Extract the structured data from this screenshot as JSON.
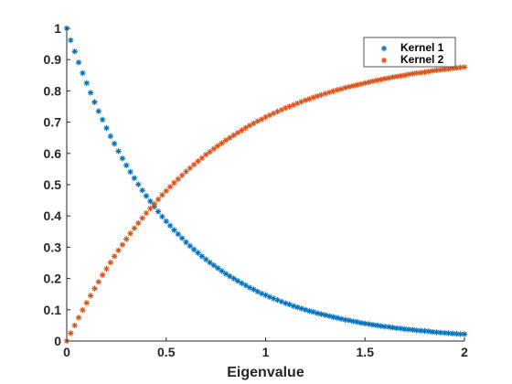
{
  "chart_data": {
    "type": "scatter",
    "xlabel": "Eigenvalue",
    "ylabel": "",
    "title": "",
    "xlim": [
      0,
      2
    ],
    "ylim": [
      0,
      1
    ],
    "x_ticks": [
      "0",
      "0.5",
      "1",
      "1.5",
      "2"
    ],
    "y_ticks": [
      "0",
      "0.1",
      "0.2",
      "0.3",
      "0.4",
      "0.5",
      "0.6",
      "0.7",
      "0.8",
      "0.9",
      "1"
    ],
    "grid": false,
    "legend_position": "top-right",
    "marker": "asterisk",
    "x": [
      0,
      0.02,
      0.04,
      0.06,
      0.08,
      0.1,
      0.12,
      0.14,
      0.16,
      0.18,
      0.2,
      0.22,
      0.24,
      0.26,
      0.28,
      0.3,
      0.32,
      0.34,
      0.36,
      0.38,
      0.4,
      0.42,
      0.44,
      0.46,
      0.48,
      0.5,
      0.52,
      0.54,
      0.56,
      0.58,
      0.6,
      0.62,
      0.64,
      0.66,
      0.68,
      0.7,
      0.72,
      0.74,
      0.76,
      0.78,
      0.8,
      0.82,
      0.84,
      0.86,
      0.88,
      0.9,
      0.92,
      0.94,
      0.96,
      0.98,
      1,
      1.02,
      1.04,
      1.06,
      1.08,
      1.1,
      1.12,
      1.14,
      1.16,
      1.18,
      1.2,
      1.22,
      1.24,
      1.26,
      1.28,
      1.3,
      1.32,
      1.34,
      1.36,
      1.38,
      1.4,
      1.42,
      1.44,
      1.46,
      1.48,
      1.5,
      1.52,
      1.54,
      1.56,
      1.58,
      1.6,
      1.62,
      1.64,
      1.66,
      1.68,
      1.7,
      1.72,
      1.74,
      1.76,
      1.78,
      1.8,
      1.82,
      1.84,
      1.86,
      1.88,
      1.9,
      1.92,
      1.94,
      1.96,
      1.98,
      2
    ],
    "series": [
      {
        "name": "Kernel 1",
        "color": "#0072bd",
        "values": [
          1,
          0.962,
          0.926,
          0.891,
          0.857,
          0.825,
          0.794,
          0.764,
          0.735,
          0.708,
          0.681,
          0.655,
          0.631,
          0.607,
          0.584,
          0.562,
          0.541,
          0.521,
          0.501,
          0.482,
          0.464,
          0.447,
          0.43,
          0.414,
          0.398,
          0.383,
          0.369,
          0.355,
          0.342,
          0.329,
          0.316,
          0.304,
          0.293,
          0.282,
          0.271,
          0.261,
          0.251,
          0.242,
          0.233,
          0.224,
          0.215,
          0.207,
          0.2,
          0.192,
          0.185,
          0.178,
          0.171,
          0.165,
          0.158,
          0.152,
          0.147,
          0.141,
          0.136,
          0.131,
          0.126,
          0.121,
          0.117,
          0.112,
          0.108,
          0.104,
          0.1,
          0.096,
          0.093,
          0.089,
          0.086,
          0.083,
          0.08,
          0.077,
          0.074,
          0.071,
          0.068,
          0.066,
          0.063,
          0.061,
          0.058,
          0.056,
          0.054,
          0.052,
          0.05,
          0.048,
          0.046,
          0.045,
          0.043,
          0.041,
          0.04,
          0.038,
          0.037,
          0.036,
          0.034,
          0.033,
          0.032,
          0.031,
          0.029,
          0.028,
          0.027,
          0.026,
          0.025,
          0.024,
          0.023,
          0.022,
          0.022
        ]
      },
      {
        "name": "Kernel 2",
        "color": "#d95319",
        "values": [
          0,
          0.025,
          0.05,
          0.075,
          0.099,
          0.122,
          0.145,
          0.168,
          0.189,
          0.211,
          0.231,
          0.251,
          0.271,
          0.29,
          0.308,
          0.326,
          0.344,
          0.361,
          0.377,
          0.393,
          0.409,
          0.424,
          0.438,
          0.453,
          0.467,
          0.48,
          0.493,
          0.506,
          0.518,
          0.53,
          0.542,
          0.553,
          0.564,
          0.575,
          0.585,
          0.596,
          0.605,
          0.615,
          0.624,
          0.633,
          0.642,
          0.65,
          0.658,
          0.666,
          0.674,
          0.682,
          0.689,
          0.696,
          0.703,
          0.709,
          0.716,
          0.722,
          0.728,
          0.734,
          0.739,
          0.745,
          0.75,
          0.755,
          0.76,
          0.765,
          0.77,
          0.774,
          0.779,
          0.783,
          0.787,
          0.791,
          0.795,
          0.799,
          0.803,
          0.806,
          0.81,
          0.813,
          0.816,
          0.819,
          0.822,
          0.825,
          0.828,
          0.831,
          0.834,
          0.836,
          0.839,
          0.841,
          0.844,
          0.846,
          0.848,
          0.85,
          0.853,
          0.855,
          0.857,
          0.858,
          0.86,
          0.862,
          0.864,
          0.866,
          0.867,
          0.869,
          0.87,
          0.872,
          0.873,
          0.875,
          0.876
        ]
      }
    ]
  }
}
